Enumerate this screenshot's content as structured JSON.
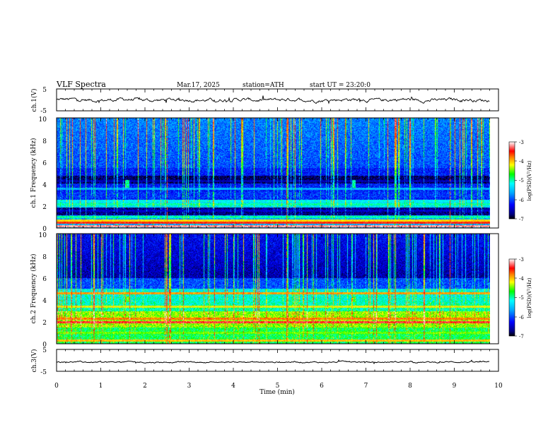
{
  "header": {
    "title": "VLF Spectra",
    "date": "Mar.17, 2025",
    "station": "station=ATH",
    "start_ut": "start UT = 23:20:0"
  },
  "chart_data": [
    {
      "type": "line",
      "panel": "ch1-waveform",
      "ylabel": "ch.1(V)",
      "ylim": [
        -5,
        5
      ],
      "yticks": [
        "5",
        "-5"
      ],
      "xlim": [
        0,
        10
      ],
      "series": [
        {
          "x_range": [
            0,
            9.8
          ],
          "mean": 0,
          "amplitude": 0.6
        }
      ]
    },
    {
      "type": "heatmap",
      "panel": "ch1-spectrogram",
      "ylabel": "ch.1 Frequency (kHz)",
      "ylim": [
        0,
        10
      ],
      "yticks": [
        "0",
        "2",
        "4",
        "6",
        "8",
        "10"
      ],
      "xlim": [
        0,
        10
      ],
      "x_data_extent": [
        0,
        9.8
      ],
      "colorbar": {
        "label": "log(PSD)(V²/Hz)",
        "range": [
          -7,
          -3
        ],
        "ticks": [
          "-3",
          "-4",
          "-5",
          "-6",
          "-7"
        ]
      },
      "bands_khz": [
        {
          "f": 0.2,
          "level": -3.2
        },
        {
          "f": 0.5,
          "level": -3.5
        },
        {
          "f": 0.7,
          "level": -4.1
        },
        {
          "f": 1.0,
          "level": -5.0
        },
        {
          "f": 1.6,
          "level": -6.5
        },
        {
          "f": 2.2,
          "level": -5.0
        },
        {
          "f": 2.5,
          "level": -5.3
        },
        {
          "f": 3.6,
          "level": -5.6
        },
        {
          "f": 4.3,
          "level": -6.6
        }
      ],
      "vertical_events_min": [
        2.5,
        5.2,
        8.9
      ]
    },
    {
      "type": "heatmap",
      "panel": "ch2-spectrogram",
      "ylabel": "ch.2 Frequency (kHz)",
      "ylim": [
        0,
        10
      ],
      "yticks": [
        "0",
        "2",
        "4",
        "6",
        "8",
        "10"
      ],
      "xlim": [
        0,
        10
      ],
      "x_data_extent": [
        0,
        9.8
      ],
      "colorbar": {
        "label": "log(PSD)(V²/Hz)",
        "range": [
          -7,
          -3
        ],
        "ticks": [
          "-3",
          "-4",
          "-5",
          "-6",
          "-7"
        ]
      },
      "bands_khz": [
        {
          "f": 0.3,
          "level": -4.0
        },
        {
          "f": 1.0,
          "level": -4.5
        },
        {
          "f": 2.0,
          "level": -3.4
        },
        {
          "f": 2.3,
          "level": -3.8
        },
        {
          "f": 3.4,
          "level": -4.2
        },
        {
          "f": 4.6,
          "level": -3.9
        }
      ],
      "vertical_events_min": [
        2.5,
        5.2,
        8.9
      ]
    },
    {
      "type": "line",
      "panel": "ch3-waveform",
      "ylabel": "ch.3(V)",
      "ylim": [
        -5,
        5
      ],
      "yticks": [
        "5",
        "-5"
      ],
      "xlim": [
        0,
        10
      ],
      "series": [
        {
          "x_range": [
            0,
            9.8
          ],
          "mean": -0.8,
          "amplitude": 0.25
        }
      ]
    }
  ],
  "xaxis": {
    "label": "Time (min)",
    "ticks": [
      "0",
      "1",
      "2",
      "3",
      "4",
      "5",
      "6",
      "7",
      "8",
      "9",
      "10"
    ]
  }
}
